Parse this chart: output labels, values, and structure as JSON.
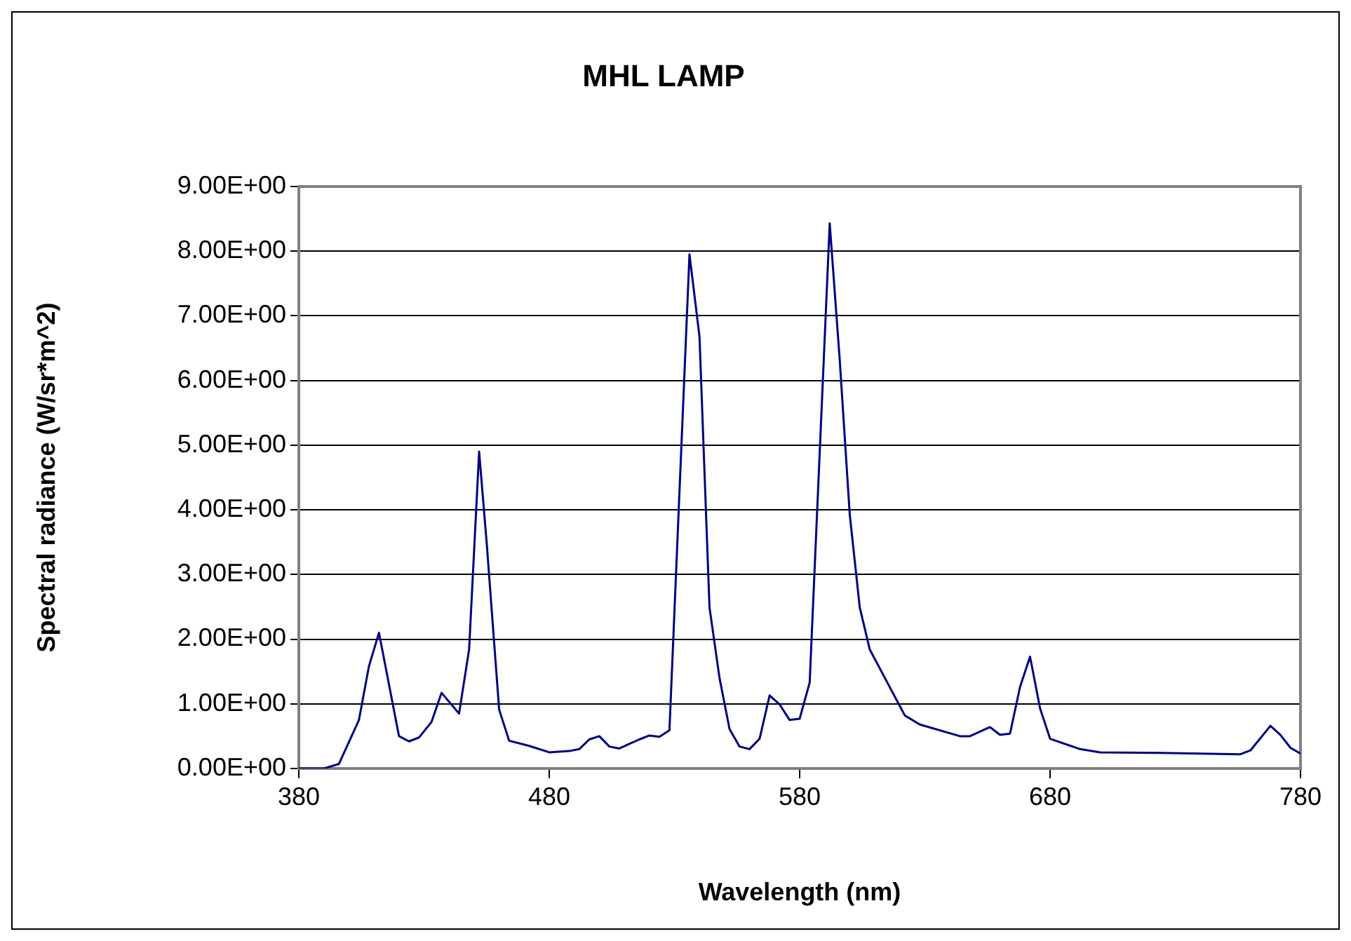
{
  "chart_data": {
    "type": "line",
    "title": "MHL LAMP",
    "xlabel": "Wavelength (nm)",
    "ylabel": "Spectral radiance (W/sr*m^2)",
    "series": [
      {
        "color": "#000080",
        "x": [
          380,
          385,
          390,
          396,
          404,
          408,
          412,
          420,
          424,
          428,
          433,
          437,
          444,
          448,
          452,
          455,
          460,
          464,
          472,
          480,
          488,
          492,
          496,
          500,
          504,
          508,
          512,
          516,
          520,
          524,
          528,
          536,
          540,
          544,
          548,
          552,
          556,
          560,
          564,
          568,
          572,
          576,
          580,
          584,
          592,
          596,
          600,
          604,
          608,
          622,
          628,
          644,
          648,
          656,
          660,
          664,
          668,
          672,
          676,
          680,
          692,
          700,
          724,
          740,
          756,
          760,
          768,
          772,
          776,
          780
        ],
        "values": [
          0,
          0,
          0,
          0.07,
          0.75,
          1.58,
          2.1,
          0.5,
          0.42,
          0.48,
          0.72,
          1.17,
          0.85,
          1.84,
          4.9,
          3.5,
          0.91,
          0.43,
          0.35,
          0.25,
          0.27,
          0.3,
          0.45,
          0.5,
          0.34,
          0.31,
          0.38,
          0.45,
          0.51,
          0.49,
          0.59,
          7.95,
          6.68,
          2.49,
          1.4,
          0.61,
          0.34,
          0.3,
          0.46,
          1.13,
          0.99,
          0.75,
          0.77,
          1.33,
          8.43,
          6.32,
          3.93,
          2.49,
          1.84,
          0.82,
          0.68,
          0.5,
          0.5,
          0.64,
          0.52,
          0.54,
          1.26,
          1.73,
          0.93,
          0.46,
          0.3,
          0.25,
          0.24,
          0.23,
          0.22,
          0.28,
          0.66,
          0.52,
          0.32,
          0.23
        ]
      }
    ],
    "xlim": [
      380,
      780
    ],
    "xticks": [
      380,
      480,
      580,
      680,
      780
    ],
    "ylim": [
      0,
      9
    ],
    "yticks": [
      {
        "value": 0,
        "label": "0.00E+00"
      },
      {
        "value": 1,
        "label": "1.00E+00"
      },
      {
        "value": 2,
        "label": "2.00E+00"
      },
      {
        "value": 3,
        "label": "3.00E+00"
      },
      {
        "value": 4,
        "label": "4.00E+00"
      },
      {
        "value": 5,
        "label": "5.00E+00"
      },
      {
        "value": 6,
        "label": "6.00E+00"
      },
      {
        "value": 7,
        "label": "7.00E+00"
      },
      {
        "value": 8,
        "label": "8.00E+00"
      },
      {
        "value": 9,
        "label": "9.00E+00"
      }
    ],
    "grid": "y",
    "legend": false,
    "marker": "none",
    "line_style": "solid"
  }
}
